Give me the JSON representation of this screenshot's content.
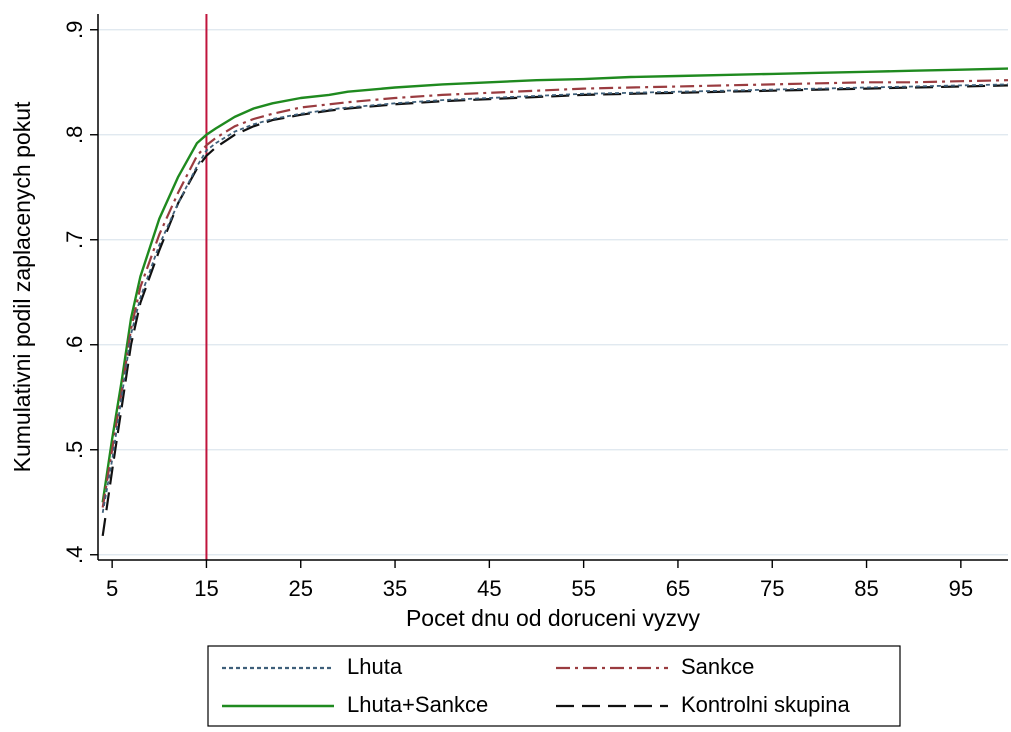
{
  "chart_data": {
    "type": "line",
    "title": "",
    "xlabel": "Pocet dnu od doruceni vyzvy",
    "ylabel": "Kumulativni podil zaplacenych pokut",
    "xlim": [
      3.5,
      100
    ],
    "ylim": [
      0.395,
      0.915
    ],
    "xticks": [
      5,
      15,
      25,
      35,
      45,
      55,
      65,
      75,
      85,
      95
    ],
    "xtick_labels": [
      "5",
      "15",
      "25",
      "35",
      "45",
      "55",
      "65",
      "75",
      "85",
      "95"
    ],
    "yticks": [
      0.4,
      0.5,
      0.6,
      0.7,
      0.8,
      0.9
    ],
    "ytick_labels": [
      ".4",
      ".5",
      ".6",
      ".7",
      ".8",
      ".9"
    ],
    "grid": true,
    "legend_position": "bottom",
    "vline": {
      "x": 15,
      "color": "#c0143c"
    },
    "series": [
      {
        "name": "Lhuta",
        "color": "#3e5f7a",
        "dash": "dotted",
        "x": [
          4,
          5,
          6,
          7,
          8,
          10,
          12,
          14,
          15,
          16,
          18,
          20,
          22,
          25,
          28,
          30,
          35,
          40,
          45,
          50,
          55,
          60,
          65,
          70,
          75,
          80,
          85,
          90,
          95,
          100
        ],
        "y": [
          0.44,
          0.49,
          0.55,
          0.61,
          0.645,
          0.695,
          0.735,
          0.77,
          0.785,
          0.792,
          0.803,
          0.81,
          0.815,
          0.82,
          0.824,
          0.826,
          0.83,
          0.833,
          0.835,
          0.837,
          0.839,
          0.84,
          0.841,
          0.842,
          0.843,
          0.844,
          0.845,
          0.846,
          0.847,
          0.848
        ]
      },
      {
        "name": "Sankce",
        "color": "#9a3c40",
        "dash": "dashdot",
        "x": [
          4,
          5,
          6,
          7,
          8,
          10,
          12,
          14,
          15,
          16,
          18,
          20,
          22,
          25,
          28,
          30,
          35,
          40,
          45,
          50,
          55,
          60,
          65,
          70,
          75,
          80,
          85,
          90,
          95,
          100
        ],
        "y": [
          0.445,
          0.5,
          0.555,
          0.615,
          0.655,
          0.705,
          0.745,
          0.78,
          0.79,
          0.797,
          0.808,
          0.815,
          0.82,
          0.826,
          0.829,
          0.831,
          0.835,
          0.838,
          0.84,
          0.842,
          0.844,
          0.845,
          0.846,
          0.847,
          0.848,
          0.849,
          0.85,
          0.85,
          0.851,
          0.852
        ]
      },
      {
        "name": "Lhuta+Sankce",
        "color": "#1f8a1f",
        "dash": "solid",
        "x": [
          4,
          5,
          6,
          7,
          8,
          10,
          12,
          14,
          15,
          16,
          18,
          20,
          22,
          25,
          28,
          30,
          35,
          40,
          45,
          50,
          55,
          60,
          65,
          70,
          75,
          80,
          85,
          90,
          95,
          100
        ],
        "y": [
          0.45,
          0.51,
          0.565,
          0.625,
          0.665,
          0.72,
          0.76,
          0.792,
          0.8,
          0.806,
          0.817,
          0.825,
          0.83,
          0.835,
          0.838,
          0.841,
          0.845,
          0.848,
          0.85,
          0.852,
          0.853,
          0.855,
          0.856,
          0.857,
          0.858,
          0.859,
          0.86,
          0.861,
          0.862,
          0.863
        ]
      },
      {
        "name": "Kontrolni skupina",
        "color": "#111111",
        "dash": "longdash",
        "x": [
          4,
          5,
          6,
          7,
          8,
          10,
          12,
          14,
          15,
          16,
          18,
          20,
          22,
          25,
          28,
          30,
          35,
          40,
          45,
          50,
          55,
          60,
          65,
          70,
          75,
          80,
          85,
          90,
          95,
          100
        ],
        "y": [
          0.418,
          0.48,
          0.54,
          0.6,
          0.64,
          0.69,
          0.735,
          0.768,
          0.78,
          0.788,
          0.8,
          0.808,
          0.814,
          0.819,
          0.823,
          0.825,
          0.829,
          0.832,
          0.834,
          0.836,
          0.838,
          0.839,
          0.84,
          0.841,
          0.842,
          0.843,
          0.844,
          0.845,
          0.846,
          0.847
        ]
      }
    ]
  }
}
